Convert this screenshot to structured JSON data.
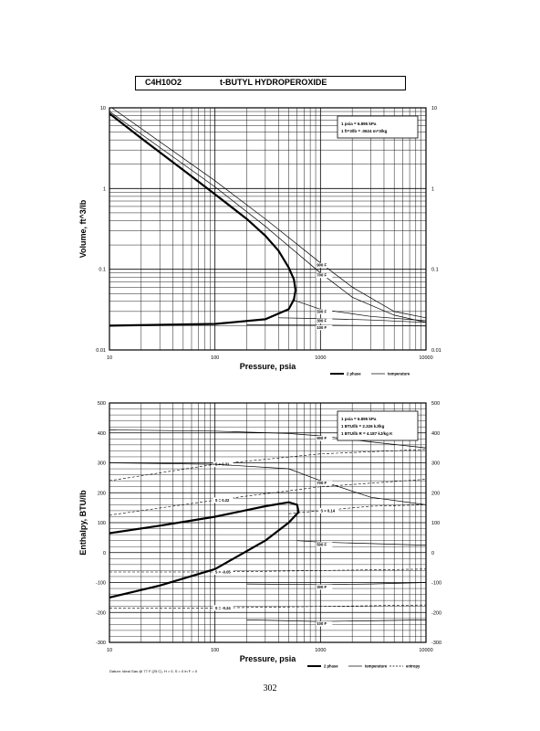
{
  "page": {
    "formula": "C4H10O2",
    "name": "t-BUTYL HYDROPEROXIDE",
    "page_number": "302",
    "footer": "Datum: Ideal Gas @ 77 F (25 C), H = 0, S = 0 In F = 0"
  },
  "chart_data": [
    {
      "type": "line",
      "xlabel": "Pressure,  psia",
      "ylabel": "Volume, ft^3/lb",
      "xscale": "log",
      "yscale": "log",
      "xlim": [
        10,
        10000
      ],
      "ylim": [
        0.01,
        10
      ],
      "x_ticks": [
        "10",
        "100",
        "1000",
        "10000"
      ],
      "y_ticks_left": [
        "0.01",
        "0.1",
        "1",
        "10"
      ],
      "y_ticks_right": [
        "0.01",
        "0.1",
        "1",
        "10"
      ],
      "grid": true,
      "note": [
        "1 psia = 6.895 kPa",
        "1 ft^3/lb = .0624 m^3/kg"
      ],
      "legend": [
        {
          "label": "2 phase",
          "style": "thick"
        },
        {
          "label": "temperature",
          "style": "thin"
        }
      ],
      "legend_position": "bottom-right",
      "two_phase": [
        {
          "x": 10,
          "y": 8.5
        },
        {
          "x": 20,
          "y": 4.2
        },
        {
          "x": 50,
          "y": 1.7
        },
        {
          "x": 100,
          "y": 0.85
        },
        {
          "x": 200,
          "y": 0.42
        },
        {
          "x": 300,
          "y": 0.26
        },
        {
          "x": 400,
          "y": 0.17
        },
        {
          "x": 500,
          "y": 0.105
        },
        {
          "x": 560,
          "y": 0.075
        },
        {
          "x": 580,
          "y": 0.055
        },
        {
          "x": 560,
          "y": 0.042
        },
        {
          "x": 500,
          "y": 0.032
        },
        {
          "x": 300,
          "y": 0.024
        },
        {
          "x": 100,
          "y": 0.021
        },
        {
          "x": 30,
          "y": 0.0205
        },
        {
          "x": 10,
          "y": 0.02
        }
      ],
      "isotherms": [
        {
          "label": "900 F",
          "points": [
            {
              "x": 10,
              "y": 10.5
            },
            {
              "x": 100,
              "y": 1.25
            },
            {
              "x": 300,
              "y": 0.42
            },
            {
              "x": 1000,
              "y": 0.12
            },
            {
              "x": 2000,
              "y": 0.06
            },
            {
              "x": 5000,
              "y": 0.03
            },
            {
              "x": 10000,
              "y": 0.025
            }
          ]
        },
        {
          "label": "700 F",
          "points": [
            {
              "x": 10,
              "y": 9.0
            },
            {
              "x": 100,
              "y": 1.05
            },
            {
              "x": 300,
              "y": 0.34
            },
            {
              "x": 1000,
              "y": 0.09
            },
            {
              "x": 2000,
              "y": 0.045
            },
            {
              "x": 5000,
              "y": 0.027
            },
            {
              "x": 10000,
              "y": 0.022
            }
          ]
        },
        {
          "label": "500 F",
          "points": [
            {
              "x": 540,
              "y": 0.042
            },
            {
              "x": 1000,
              "y": 0.032
            },
            {
              "x": 3000,
              "y": 0.026
            },
            {
              "x": 10000,
              "y": 0.023
            }
          ]
        },
        {
          "label": "300 F",
          "points": [
            {
              "x": 400,
              "y": 0.025
            },
            {
              "x": 1000,
              "y": 0.0245
            },
            {
              "x": 3000,
              "y": 0.0235
            },
            {
              "x": 10000,
              "y": 0.022
            }
          ]
        },
        {
          "label": "100 F",
          "points": [
            {
              "x": 200,
              "y": 0.0205
            },
            {
              "x": 1000,
              "y": 0.0203
            },
            {
              "x": 10000,
              "y": 0.0198
            }
          ]
        }
      ]
    },
    {
      "type": "line",
      "xlabel": "Pressure,  psia",
      "ylabel": "Enthalpy, BTU/lb",
      "xscale": "log",
      "xlim": [
        10,
        10000
      ],
      "ylim": [
        -300,
        500
      ],
      "x_ticks": [
        "10",
        "100",
        "1000",
        "10000"
      ],
      "y_ticks_left": [
        "-300",
        "-200",
        "-100",
        "0",
        "100",
        "200",
        "300",
        "400",
        "500"
      ],
      "y_ticks_right": [
        "-300",
        "-200",
        "-100",
        "0",
        "100",
        "200",
        "300",
        "400",
        "500"
      ],
      "grid": true,
      "note": [
        "1 psia = 6.895 kPa",
        "1 BTU/lb = 2.326 kJ/kg",
        "1 BTU/lb R = 4.187 kJ/kg K"
      ],
      "legend": [
        {
          "label": "2 phase",
          "style": "thick"
        },
        {
          "label": "temperature",
          "style": "thin"
        },
        {
          "label": "entropy",
          "style": "dashed"
        }
      ],
      "legend_position": "bottom-right",
      "two_phase": [
        {
          "x": 10,
          "y": 65
        },
        {
          "x": 30,
          "y": 90
        },
        {
          "x": 100,
          "y": 120
        },
        {
          "x": 300,
          "y": 155
        },
        {
          "x": 500,
          "y": 168
        },
        {
          "x": 600,
          "y": 160
        },
        {
          "x": 620,
          "y": 135
        },
        {
          "x": 500,
          "y": 100
        },
        {
          "x": 300,
          "y": 40
        },
        {
          "x": 100,
          "y": -55
        },
        {
          "x": 30,
          "y": -110
        },
        {
          "x": 10,
          "y": -150
        }
      ],
      "isotherms": [
        {
          "label": "900 F",
          "points": [
            {
              "x": 10,
              "y": 410
            },
            {
              "x": 100,
              "y": 406
            },
            {
              "x": 500,
              "y": 398
            },
            {
              "x": 1000,
              "y": 390
            },
            {
              "x": 3000,
              "y": 370
            },
            {
              "x": 10000,
              "y": 350
            }
          ]
        },
        {
          "label": "700 F",
          "points": [
            {
              "x": 10,
              "y": 300
            },
            {
              "x": 100,
              "y": 295
            },
            {
              "x": 500,
              "y": 280
            },
            {
              "x": 1000,
              "y": 240
            },
            {
              "x": 3000,
              "y": 185
            },
            {
              "x": 10000,
              "y": 160
            }
          ]
        },
        {
          "label": "500 F",
          "points": [
            {
              "x": 600,
              "y": 40
            },
            {
              "x": 1000,
              "y": 35
            },
            {
              "x": 3000,
              "y": 30
            },
            {
              "x": 10000,
              "y": 25
            }
          ]
        },
        {
          "label": "300 F",
          "points": [
            {
              "x": 200,
              "y": -105
            },
            {
              "x": 1000,
              "y": -107
            },
            {
              "x": 3000,
              "y": -105
            },
            {
              "x": 10000,
              "y": -100
            }
          ]
        },
        {
          "label": "100 F",
          "points": [
            {
              "x": 200,
              "y": -225
            },
            {
              "x": 1000,
              "y": -230
            },
            {
              "x": 3000,
              "y": -228
            },
            {
              "x": 10000,
              "y": -225
            }
          ]
        }
      ],
      "entropy_lines": [
        {
          "label": "S = 0.31",
          "points": [
            {
              "x": 10,
              "y": 240
            },
            {
              "x": 100,
              "y": 295
            },
            {
              "x": 1000,
              "y": 330
            },
            {
              "x": 10000,
              "y": 345
            }
          ]
        },
        {
          "label": "S = 0.22",
          "points": [
            {
              "x": 10,
              "y": 125
            },
            {
              "x": 100,
              "y": 175
            },
            {
              "x": 1000,
              "y": 220
            },
            {
              "x": 10000,
              "y": 245
            }
          ]
        },
        {
          "label": "S = 0.14",
          "points": [
            {
              "x": 500,
              "y": 130
            },
            {
              "x": 1000,
              "y": 140
            },
            {
              "x": 3000,
              "y": 155
            },
            {
              "x": 10000,
              "y": 160
            }
          ]
        },
        {
          "label": "S = -0.05",
          "points": [
            {
              "x": 10,
              "y": -65
            },
            {
              "x": 100,
              "y": -65
            },
            {
              "x": 1000,
              "y": -60
            },
            {
              "x": 10000,
              "y": -55
            }
          ]
        },
        {
          "label": "S = -0.24",
          "points": [
            {
              "x": 10,
              "y": -185
            },
            {
              "x": 100,
              "y": -185
            },
            {
              "x": 1000,
              "y": -180
            },
            {
              "x": 10000,
              "y": -175
            }
          ]
        }
      ]
    }
  ]
}
